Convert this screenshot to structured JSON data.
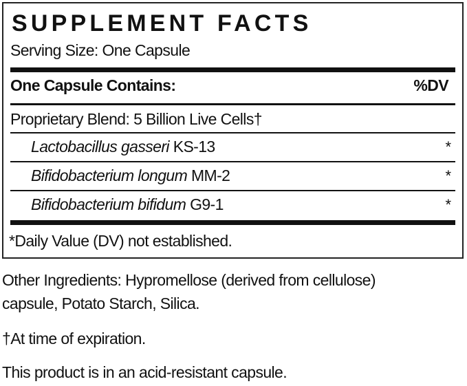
{
  "panel": {
    "title": "SUPPLEMENT FACTS",
    "serving_size": "Serving Size: One Capsule",
    "header_left": "One Capsule Contains:",
    "header_right": "%DV",
    "blend": "Proprietary Blend: 5 Billion Live Cells†",
    "ingredients": [
      {
        "species": "Lactobacillus gasseri",
        "strain": "KS-13",
        "dv": "*"
      },
      {
        "species": "Bifidobacterium longum",
        "strain": "MM-2",
        "dv": "*"
      },
      {
        "species": "Bifidobacterium bifidum",
        "strain": "G9-1",
        "dv": "*"
      }
    ],
    "footnote": "*Daily Value (DV) not established."
  },
  "notes": {
    "other_line1": "Other Ingredients: Hypromellose (derived from cellulose)",
    "other_line2": "capsule, Potato Starch, Silica.",
    "dagger": "†At time of expiration.",
    "capsule": "This product is in an acid-resistant capsule."
  }
}
